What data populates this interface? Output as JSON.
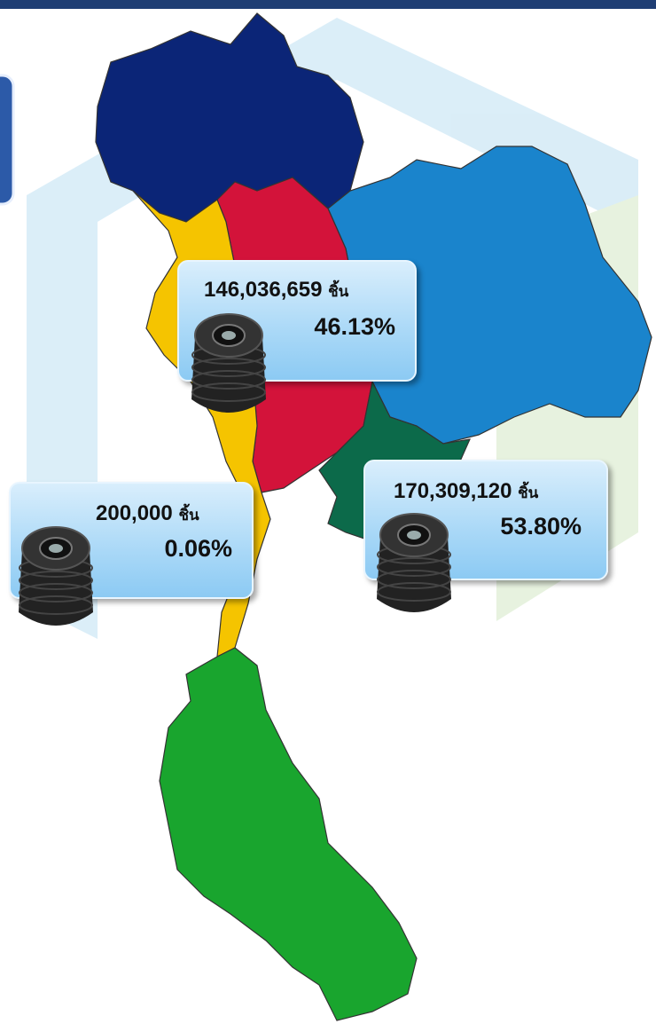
{
  "callouts": [
    {
      "amount": "146,036,659",
      "unit": "ชิ้น",
      "percent": "46.13%"
    },
    {
      "amount": "200,000",
      "unit": "ชิ้น",
      "percent": "0.06%"
    },
    {
      "amount": "170,309,120",
      "unit": "ชิ้น",
      "percent": "53.80%"
    }
  ]
}
